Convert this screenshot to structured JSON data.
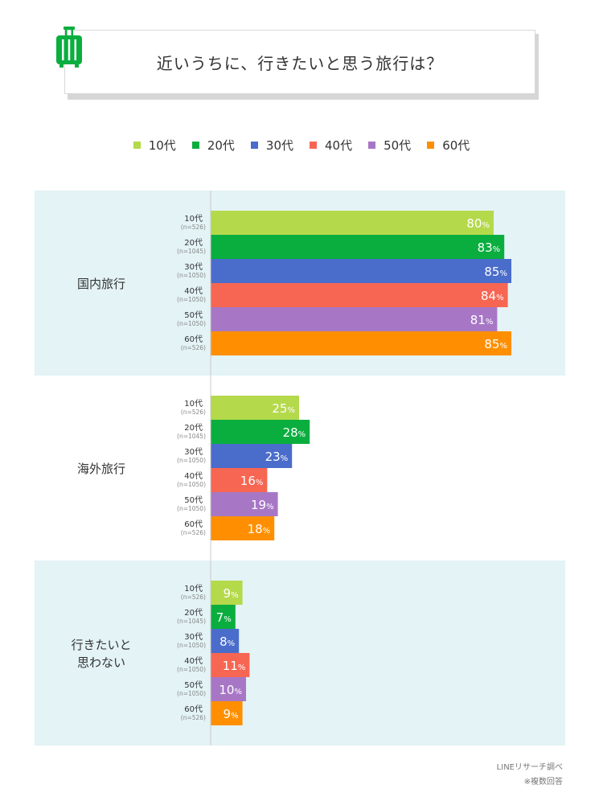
{
  "title": "近いうちに、行きたいと思う旅行は？",
  "legend": [
    {
      "label": "10代",
      "color": "#b4d94b"
    },
    {
      "label": "20代",
      "color": "#0aae3f"
    },
    {
      "label": "30代",
      "color": "#4a6ccb"
    },
    {
      "label": "40代",
      "color": "#f76652"
    },
    {
      "label": "50代",
      "color": "#a777c6"
    },
    {
      "label": "60代",
      "color": "#ff8f00"
    }
  ],
  "chart_data": {
    "type": "bar",
    "orientation": "horizontal",
    "xlim": [
      0,
      100
    ],
    "unit": "%",
    "panel_colors": [
      "#e3f3f6",
      "#ffffff",
      "#e3f3f6"
    ],
    "age_labels": [
      "10代",
      "20代",
      "30代",
      "40代",
      "50代",
      "60代"
    ],
    "sample_sizes": [
      "(n=526)",
      "(n=1045)",
      "(n=1050)",
      "(n=1050)",
      "(n=1050)",
      "(n=526)"
    ],
    "groups": [
      {
        "label": [
          "国内旅行"
        ],
        "values": [
          80,
          83,
          85,
          84,
          81,
          85
        ]
      },
      {
        "label": [
          "海外旅行"
        ],
        "values": [
          25,
          28,
          23,
          16,
          19,
          18
        ]
      },
      {
        "label": [
          "行きたいと",
          "思わない"
        ],
        "values": [
          9,
          7,
          8,
          11,
          10,
          9
        ]
      }
    ]
  },
  "footer": {
    "source": "LINEリサーチ調べ",
    "note": "※複数回答"
  }
}
